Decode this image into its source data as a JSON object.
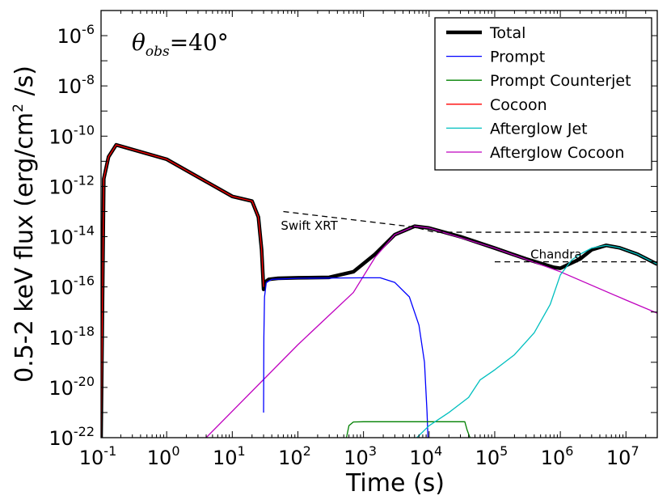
{
  "chart_data": {
    "type": "line",
    "title": "",
    "xlabel": "Time (s)",
    "ylabel": "0.5-2 keV flux (erg/cm² /s)",
    "ylabel_parts": {
      "main": "0.5-2 keV flux (erg/cm",
      "sup": "2",
      "tail": " /s)"
    },
    "xscale": "log",
    "yscale": "log",
    "xlim": [
      0.1,
      30000000
    ],
    "ylim": [
      1e-22,
      1e-05
    ],
    "x_ticks": [
      {
        "value": 0.1,
        "base": "10",
        "exp": "-1"
      },
      {
        "value": 1,
        "base": "10",
        "exp": "0"
      },
      {
        "value": 10,
        "base": "10",
        "exp": "1"
      },
      {
        "value": 100,
        "base": "10",
        "exp": "2"
      },
      {
        "value": 1000,
        "base": "10",
        "exp": "3"
      },
      {
        "value": 10000,
        "base": "10",
        "exp": "4"
      },
      {
        "value": 100000,
        "base": "10",
        "exp": "5"
      },
      {
        "value": 1000000,
        "base": "10",
        "exp": "6"
      },
      {
        "value": 10000000,
        "base": "10",
        "exp": "7"
      }
    ],
    "y_ticks": [
      {
        "value": 1e-22,
        "base": "10",
        "exp": "-22"
      },
      {
        "value": 1e-20,
        "base": "10",
        "exp": "-20"
      },
      {
        "value": 1e-18,
        "base": "10",
        "exp": "-18"
      },
      {
        "value": 1e-16,
        "base": "10",
        "exp": "-16"
      },
      {
        "value": 1e-14,
        "base": "10",
        "exp": "-14"
      },
      {
        "value": 1e-12,
        "base": "10",
        "exp": "-12"
      },
      {
        "value": 1e-10,
        "base": "10",
        "exp": "-10"
      },
      {
        "value": 1e-08,
        "base": "10",
        "exp": "-8"
      },
      {
        "value": 1e-06,
        "base": "10",
        "exp": "-6"
      }
    ],
    "legend_position": "top-right",
    "annotation_theta": {
      "symbol": "θ",
      "sub": "obs",
      "rest": "=40°"
    },
    "series": [
      {
        "name": "Total",
        "color": "#000000",
        "width": 4.5,
        "in_legend": true,
        "points": [
          [
            0.1,
            1e-22
          ],
          [
            0.11,
            2e-12
          ],
          [
            0.13,
            1.5e-11
          ],
          [
            0.17,
            4.5e-11
          ],
          [
            1,
            1.2e-11
          ],
          [
            10,
            4e-13
          ],
          [
            20,
            2.6e-13
          ],
          [
            25,
            6e-14
          ],
          [
            28,
            3e-15
          ],
          [
            30,
            8e-17
          ],
          [
            31,
            1.5e-16
          ],
          [
            36,
            2e-16
          ],
          [
            50,
            2.2e-16
          ],
          [
            100,
            2.3e-16
          ],
          [
            300,
            2.4e-16
          ],
          [
            700,
            4e-16
          ],
          [
            1500,
            2e-15
          ],
          [
            3000,
            1.2e-14
          ],
          [
            6000,
            2.6e-14
          ],
          [
            10000,
            2.2e-14
          ],
          [
            30000,
            1e-14
          ],
          [
            100000,
            3.5e-15
          ],
          [
            300000,
            1.3e-15
          ],
          [
            800000,
            6e-16
          ],
          [
            1000000,
            5.5e-16
          ],
          [
            2000000,
            1.3e-15
          ],
          [
            3000000,
            3e-15
          ],
          [
            5000000,
            4.5e-15
          ],
          [
            8000000,
            3.6e-15
          ],
          [
            15000000,
            2e-15
          ],
          [
            30000000,
            8e-16
          ]
        ]
      },
      {
        "name": "Prompt",
        "color": "#0000ff",
        "width": 1.3,
        "in_legend": true,
        "points": [
          [
            30,
            1e-21
          ],
          [
            30.3,
            1e-18
          ],
          [
            31,
            4e-17
          ],
          [
            33,
            1.5e-16
          ],
          [
            40,
            2e-16
          ],
          [
            100,
            2.2e-16
          ],
          [
            1000,
            2.3e-16
          ],
          [
            1800,
            2.3e-16
          ],
          [
            3000,
            1.5e-16
          ],
          [
            5000,
            4e-17
          ],
          [
            7000,
            3e-18
          ],
          [
            8500,
            1e-19
          ],
          [
            9300,
            1e-21
          ],
          [
            9600,
            1e-22
          ]
        ]
      },
      {
        "name": "Prompt Counterjet",
        "color": "#008000",
        "width": 1.3,
        "in_legend": true,
        "points": [
          [
            550,
            1e-22
          ],
          [
            600,
            3e-22
          ],
          [
            700,
            4.2e-22
          ],
          [
            1000,
            4.3e-22
          ],
          [
            10000,
            4.3e-22
          ],
          [
            35000,
            4.3e-22
          ],
          [
            38000,
            2e-22
          ],
          [
            42000,
            1e-22
          ]
        ]
      },
      {
        "name": "Cocoon",
        "color": "#ff0000",
        "width": 1.3,
        "in_legend": true,
        "points": [
          [
            0.1,
            1e-22
          ],
          [
            0.11,
            2e-12
          ],
          [
            0.13,
            1.5e-11
          ],
          [
            0.17,
            4.5e-11
          ],
          [
            1,
            1.2e-11
          ],
          [
            10,
            4e-13
          ],
          [
            20,
            2.6e-13
          ],
          [
            25,
            6e-14
          ],
          [
            28,
            3e-15
          ],
          [
            30,
            1e-16
          ]
        ]
      },
      {
        "name": "Afterglow Jet",
        "color": "#00bfbf",
        "width": 1.3,
        "in_legend": true,
        "points": [
          [
            6500,
            1e-22
          ],
          [
            10000,
            3e-22
          ],
          [
            20000,
            1e-21
          ],
          [
            40000,
            4e-21
          ],
          [
            60000,
            2e-20
          ],
          [
            100000,
            5e-20
          ],
          [
            200000,
            2e-19
          ],
          [
            400000,
            1.5e-18
          ],
          [
            700000,
            2e-17
          ],
          [
            1000000,
            3e-16
          ],
          [
            1500000,
            1.2e-15
          ],
          [
            2000000,
            2e-15
          ],
          [
            3000000,
            3.5e-15
          ],
          [
            5000000,
            4.5e-15
          ],
          [
            8000000,
            3.6e-15
          ],
          [
            15000000,
            2e-15
          ],
          [
            30000000,
            8e-16
          ]
        ]
      },
      {
        "name": "Afterglow Cocoon",
        "color": "#bf00bf",
        "width": 1.3,
        "in_legend": true,
        "points": [
          [
            4,
            1e-22
          ],
          [
            100,
            5e-19
          ],
          [
            700,
            6e-17
          ],
          [
            1500,
            1.5e-15
          ],
          [
            3000,
            1.2e-14
          ],
          [
            6000,
            2.6e-14
          ],
          [
            10000,
            2.2e-14
          ],
          [
            100000,
            3.5e-15
          ],
          [
            1000000,
            4e-16
          ],
          [
            10000000,
            3e-17
          ],
          [
            30000000,
            9e-18
          ]
        ]
      }
    ],
    "sensitivity_lines": [
      {
        "label": "Swift XRT",
        "color": "#000000",
        "dashed": true,
        "points": [
          [
            60,
            1e-13
          ],
          [
            6000,
            2.4e-14
          ],
          [
            12000,
            1.5e-14
          ],
          [
            30000000,
            1.5e-14
          ]
        ],
        "label_at": [
          55,
          1.9e-14
        ]
      },
      {
        "label": "Chandra",
        "color": "#000000",
        "dashed": true,
        "points": [
          [
            100000,
            1e-15
          ],
          [
            30000000,
            1e-15
          ]
        ],
        "label_at": [
          350000,
          1.35e-15
        ]
      }
    ]
  }
}
